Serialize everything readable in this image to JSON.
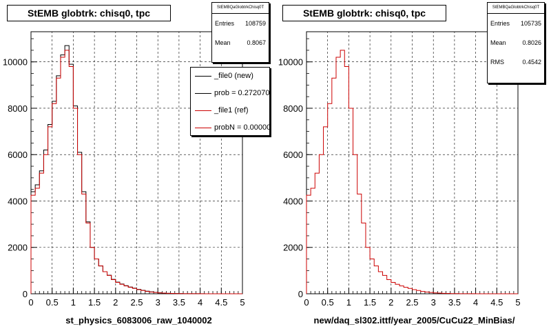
{
  "panels": [
    {
      "title": "StEMB globtrk: chisq0, tpc",
      "xlabel": "st_physics_6083006_raw_1040002",
      "stats": {
        "name": "StEMBQaGlobtrkChisq0T",
        "rows": [
          {
            "label": "Entries",
            "value": "108759"
          },
          {
            "label": "Mean",
            "value": "0.8067"
          }
        ]
      },
      "legend": [
        {
          "text": "_file0 (new)",
          "color": "#000000"
        },
        {
          "text": "prob = 0.272070",
          "color": "#000000"
        },
        {
          "text": "_file1 (ref)",
          "color": "#cc0000"
        },
        {
          "text": "probN = 0.000000",
          "color": "#cc0000"
        }
      ]
    },
    {
      "title": "StEMB globtrk: chisq0, tpc",
      "xlabel": "new/daq_sl302.ittf/year_2005/CuCu22_MinBias/",
      "stats": {
        "name": "StEMBQaGlobtrkChisq0T",
        "rows": [
          {
            "label": "Entries",
            "value": "105735"
          },
          {
            "label": "Mean",
            "value": "0.8026"
          },
          {
            "label": "RMS",
            "value": "0.4542"
          }
        ]
      },
      "legend": []
    }
  ],
  "chart_data": [
    {
      "type": "histogram",
      "title": "StEMB globtrk: chisq0, tpc",
      "xlabel": "st_physics_6083006_raw_1040002",
      "ylabel": "",
      "xlim": [
        0,
        5
      ],
      "ylim": [
        0,
        11300
      ],
      "xticks": [
        "0",
        "0.5",
        "1",
        "1.5",
        "2",
        "2.5",
        "3",
        "3.5",
        "4",
        "4.5",
        "5"
      ],
      "yticks": [
        "0",
        "2000",
        "4000",
        "6000",
        "8000",
        "10000"
      ],
      "grid": true,
      "bin_width": 0.1,
      "series": [
        {
          "name": "_file0 (new)",
          "color": "#000000",
          "values": [
            4400,
            4700,
            5300,
            6200,
            7300,
            8300,
            9400,
            10300,
            10700,
            9900,
            8100,
            6100,
            4400,
            3100,
            2000,
            1500,
            1200,
            950,
            800,
            620,
            500,
            420,
            350,
            290,
            240,
            190,
            150,
            110,
            80,
            60,
            40,
            30,
            20,
            15,
            10,
            8,
            5,
            4,
            3,
            2,
            2,
            1,
            1,
            0,
            0,
            0,
            0,
            0,
            0,
            0
          ]
        },
        {
          "name": "_file1 (ref)",
          "color": "#cc0000",
          "values": [
            4250,
            4550,
            5200,
            6000,
            7200,
            8200,
            9300,
            10200,
            10500,
            9800,
            8000,
            6000,
            4300,
            3050,
            2000,
            1500,
            1200,
            950,
            790,
            610,
            490,
            410,
            340,
            280,
            230,
            180,
            140,
            100,
            75,
            55,
            38,
            28,
            18,
            14,
            9,
            7,
            5,
            3,
            2,
            2,
            1,
            1,
            0,
            0,
            0,
            0,
            0,
            0,
            0,
            0
          ]
        }
      ]
    },
    {
      "type": "histogram",
      "title": "StEMB globtrk: chisq0, tpc",
      "xlabel": "new/daq_sl302.ittf/year_2005/CuCu22_MinBias/",
      "ylabel": "",
      "xlim": [
        0,
        5
      ],
      "ylim": [
        0,
        11300
      ],
      "xticks": [
        "0",
        "0.5",
        "1",
        "1.5",
        "2",
        "2.5",
        "3",
        "3.5",
        "4",
        "4.5",
        "5"
      ],
      "yticks": [
        "0",
        "2000",
        "4000",
        "6000",
        "8000",
        "10000"
      ],
      "grid": true,
      "bin_width": 0.1,
      "series": [
        {
          "name": "",
          "color": "#cc0000",
          "values": [
            4250,
            4550,
            5200,
            6000,
            7200,
            8200,
            9300,
            10200,
            10500,
            9800,
            8000,
            6000,
            4300,
            3050,
            2000,
            1500,
            1200,
            950,
            790,
            610,
            490,
            410,
            340,
            280,
            230,
            180,
            140,
            100,
            75,
            55,
            38,
            28,
            18,
            14,
            9,
            7,
            5,
            3,
            2,
            2,
            1,
            1,
            0,
            0,
            0,
            0,
            0,
            0,
            0,
            0
          ]
        }
      ]
    }
  ]
}
